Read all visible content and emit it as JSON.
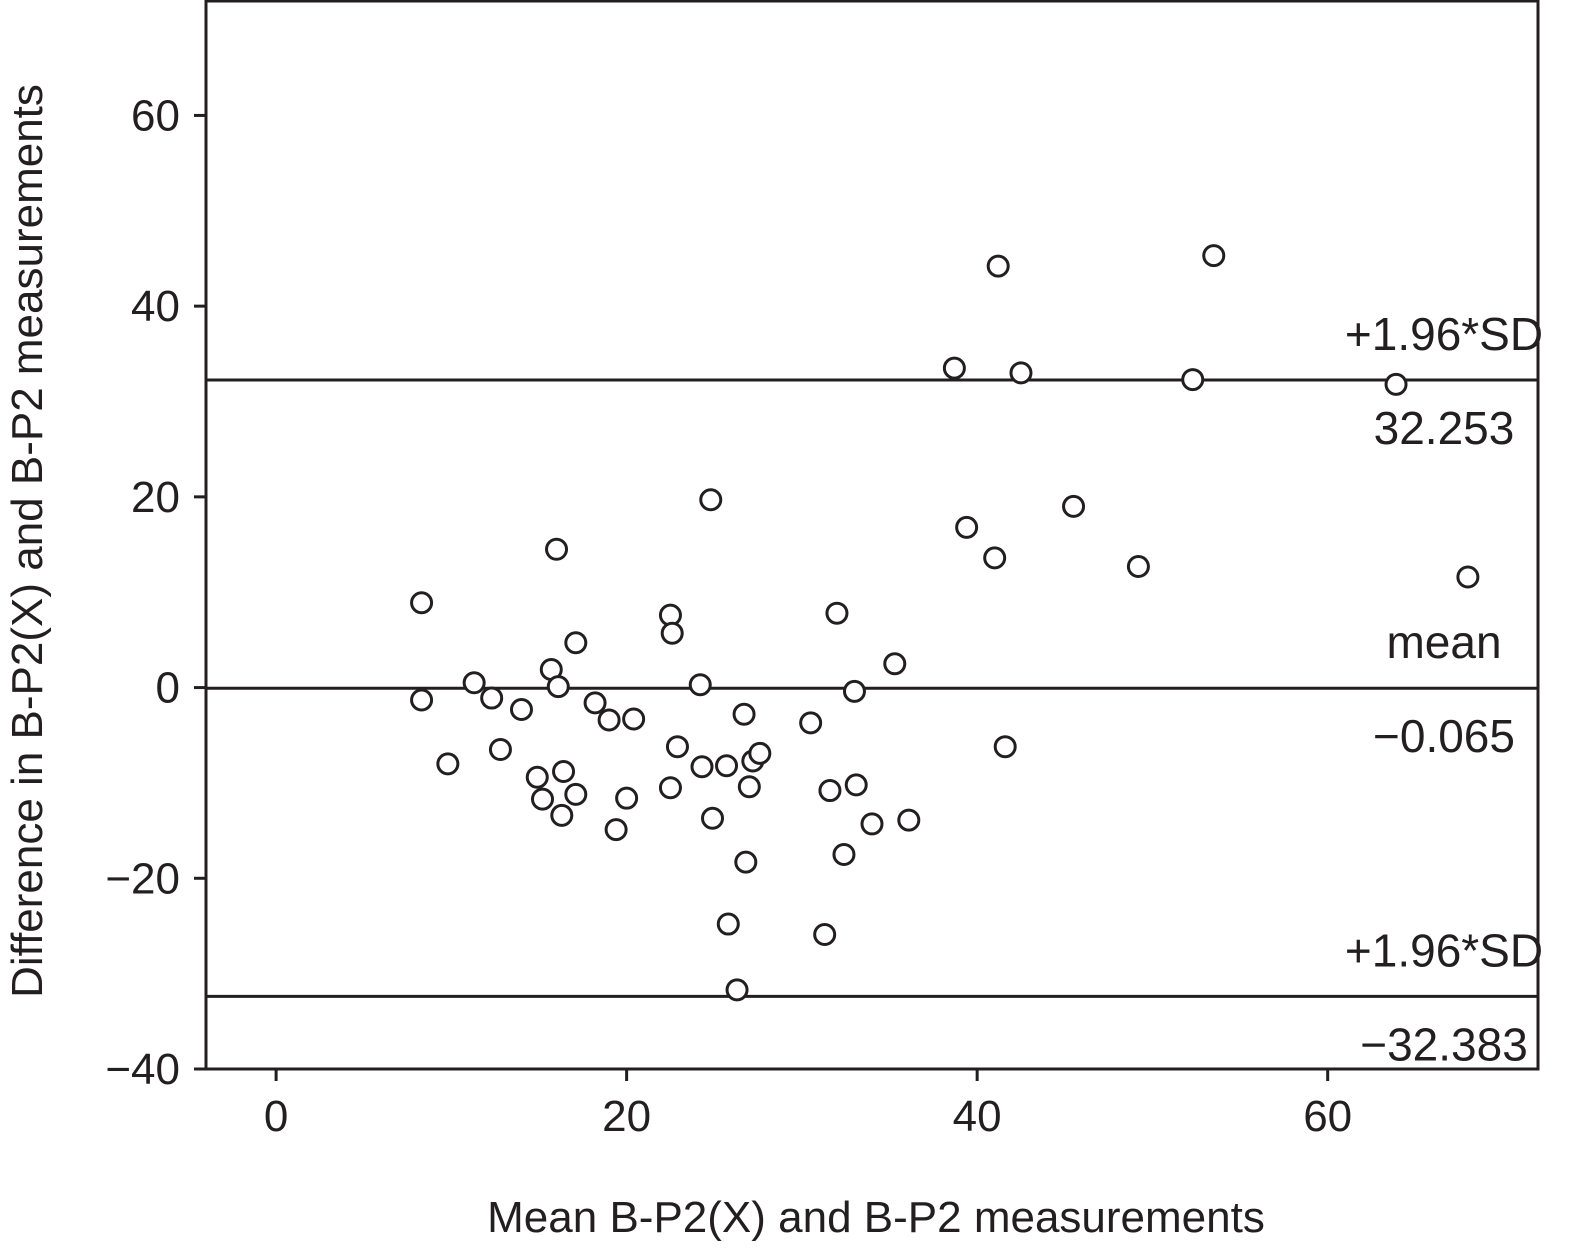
{
  "chart_data": {
    "type": "scatter",
    "title": "",
    "xlabel": "Mean B-P2(X) and B-P2 measurements",
    "ylabel": "Difference in B-P2(X) and B-P2 measurements",
    "xlim": [
      -4,
      72
    ],
    "ylim": [
      -40,
      72
    ],
    "grid": false,
    "x_ticks": [
      0,
      20,
      40,
      60
    ],
    "x_tick_labels": [
      "0",
      "20",
      "40",
      "60"
    ],
    "y_ticks": [
      -40,
      -20,
      0,
      20,
      40,
      60
    ],
    "y_tick_labels": [
      "−40",
      "−20",
      "0",
      "20",
      "40",
      "60"
    ],
    "reference_lines": [
      {
        "name": "upper",
        "y": 32.253,
        "label": "+1.96*SD",
        "value_label": "32.253"
      },
      {
        "name": "mean",
        "y": -0.065,
        "label": "mean",
        "value_label": "−0.065"
      },
      {
        "name": "lower",
        "y": -32.383,
        "label": "+1.96*SD",
        "value_label": "−32.383"
      }
    ],
    "series": [
      {
        "marker": "open-circle",
        "points": [
          {
            "x": 8.3,
            "y": 8.9
          },
          {
            "x": 8.3,
            "y": -1.3
          },
          {
            "x": 9.8,
            "y": -8.0
          },
          {
            "x": 11.3,
            "y": 0.5
          },
          {
            "x": 12.3,
            "y": -1.1
          },
          {
            "x": 12.8,
            "y": -6.5
          },
          {
            "x": 14.0,
            "y": -2.3
          },
          {
            "x": 14.9,
            "y": -9.4
          },
          {
            "x": 15.2,
            "y": -11.7
          },
          {
            "x": 15.7,
            "y": 1.9
          },
          {
            "x": 16.0,
            "y": 14.5
          },
          {
            "x": 16.1,
            "y": 0.1
          },
          {
            "x": 16.3,
            "y": -13.4
          },
          {
            "x": 16.4,
            "y": -8.8
          },
          {
            "x": 17.1,
            "y": 4.7
          },
          {
            "x": 17.1,
            "y": -11.2
          },
          {
            "x": 18.2,
            "y": -1.6
          },
          {
            "x": 19.0,
            "y": -3.4
          },
          {
            "x": 19.4,
            "y": -14.9
          },
          {
            "x": 20.0,
            "y": -11.6
          },
          {
            "x": 20.4,
            "y": -3.3
          },
          {
            "x": 22.5,
            "y": 7.6
          },
          {
            "x": 22.6,
            "y": 5.7
          },
          {
            "x": 22.5,
            "y": -10.5
          },
          {
            "x": 22.9,
            "y": -6.2
          },
          {
            "x": 24.2,
            "y": 0.3
          },
          {
            "x": 24.3,
            "y": -8.3
          },
          {
            "x": 24.8,
            "y": 19.7
          },
          {
            "x": 24.9,
            "y": -13.7
          },
          {
            "x": 25.7,
            "y": -8.2
          },
          {
            "x": 25.8,
            "y": -24.8
          },
          {
            "x": 26.3,
            "y": -31.7
          },
          {
            "x": 26.7,
            "y": -2.8
          },
          {
            "x": 26.8,
            "y": -18.3
          },
          {
            "x": 27.0,
            "y": -10.4
          },
          {
            "x": 27.2,
            "y": -7.7
          },
          {
            "x": 27.6,
            "y": -6.9
          },
          {
            "x": 30.5,
            "y": -3.7
          },
          {
            "x": 31.3,
            "y": -25.9
          },
          {
            "x": 31.6,
            "y": -10.8
          },
          {
            "x": 32.0,
            "y": 7.8
          },
          {
            "x": 32.4,
            "y": -17.5
          },
          {
            "x": 33.0,
            "y": -0.4
          },
          {
            "x": 33.1,
            "y": -10.2
          },
          {
            "x": 34.0,
            "y": -14.3
          },
          {
            "x": 35.3,
            "y": 2.5
          },
          {
            "x": 36.1,
            "y": -13.9
          },
          {
            "x": 38.7,
            "y": 33.5
          },
          {
            "x": 39.4,
            "y": 16.8
          },
          {
            "x": 41.0,
            "y": 13.6
          },
          {
            "x": 41.2,
            "y": 44.2
          },
          {
            "x": 41.6,
            "y": -6.2
          },
          {
            "x": 42.5,
            "y": 33.0
          },
          {
            "x": 45.5,
            "y": 19.0
          },
          {
            "x": 49.2,
            "y": 12.7
          },
          {
            "x": 52.3,
            "y": 32.3
          },
          {
            "x": 53.5,
            "y": 45.3
          },
          {
            "x": 63.9,
            "y": 31.8
          },
          {
            "x": 68.0,
            "y": 11.6
          }
        ]
      }
    ]
  }
}
